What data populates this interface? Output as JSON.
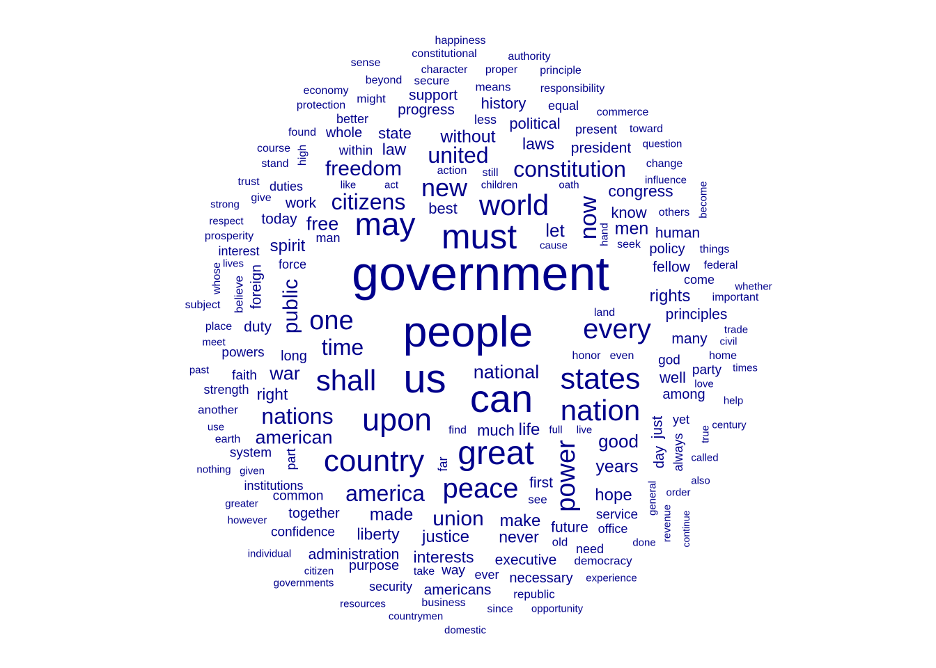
{
  "wordcloud": {
    "color": "#00008B",
    "words": [
      {
        "text": "government",
        "size": 70
      },
      {
        "text": "people",
        "size": 62
      },
      {
        "text": "us",
        "size": 58
      },
      {
        "text": "can",
        "size": 56
      },
      {
        "text": "must",
        "size": 50
      },
      {
        "text": "great",
        "size": 48
      },
      {
        "text": "may",
        "size": 46
      },
      {
        "text": "upon",
        "size": 45
      },
      {
        "text": "country",
        "size": 44
      },
      {
        "text": "states",
        "size": 43
      },
      {
        "text": "world",
        "size": 42
      },
      {
        "text": "nation",
        "size": 42
      },
      {
        "text": "shall",
        "size": 42
      },
      {
        "text": "every",
        "size": 40
      },
      {
        "text": "peace",
        "size": 40
      },
      {
        "text": "power",
        "size": 38
      },
      {
        "text": "one",
        "size": 38
      },
      {
        "text": "new",
        "size": 36
      },
      {
        "text": "now",
        "size": 34
      },
      {
        "text": "constitution",
        "size": 32
      },
      {
        "text": "america",
        "size": 32
      },
      {
        "text": "united",
        "size": 32
      },
      {
        "text": "citizens",
        "size": 32
      },
      {
        "text": "nations",
        "size": 32
      },
      {
        "text": "time",
        "size": 32
      },
      {
        "text": "freedom",
        "size": 30
      },
      {
        "text": "public",
        "size": 30
      },
      {
        "text": "union",
        "size": 30
      },
      {
        "text": "american",
        "size": 27
      },
      {
        "text": "national",
        "size": 27
      },
      {
        "text": "war",
        "size": 27
      },
      {
        "text": "free",
        "size": 27
      },
      {
        "text": "good",
        "size": 26
      },
      {
        "text": "let",
        "size": 26
      },
      {
        "text": "years",
        "size": 25
      },
      {
        "text": "without",
        "size": 25
      },
      {
        "text": "men",
        "size": 25
      },
      {
        "text": "made",
        "size": 25
      },
      {
        "text": "justice",
        "size": 24
      },
      {
        "text": "make",
        "size": 24
      },
      {
        "text": "rights",
        "size": 24
      },
      {
        "text": "life",
        "size": 24
      },
      {
        "text": "hope",
        "size": 24
      },
      {
        "text": "spirit",
        "size": 24
      },
      {
        "text": "liberty",
        "size": 23
      },
      {
        "text": "interests",
        "size": 23
      },
      {
        "text": "never",
        "size": 23
      },
      {
        "text": "right",
        "size": 23
      },
      {
        "text": "laws",
        "size": 23
      },
      {
        "text": "law",
        "size": 23
      },
      {
        "text": "congress",
        "size": 23
      },
      {
        "text": "best",
        "size": 22
      },
      {
        "text": "much",
        "size": 22
      },
      {
        "text": "political",
        "size": 22
      },
      {
        "text": "history",
        "size": 22
      },
      {
        "text": "state",
        "size": 22
      },
      {
        "text": "know",
        "size": 22
      },
      {
        "text": "well",
        "size": 22
      },
      {
        "text": "executive",
        "size": 21
      },
      {
        "text": "americans",
        "size": 21
      },
      {
        "text": "administration",
        "size": 21
      },
      {
        "text": "future",
        "size": 21
      },
      {
        "text": "first",
        "size": 21
      },
      {
        "text": "work",
        "size": 21
      },
      {
        "text": "duty",
        "size": 21
      },
      {
        "text": "fellow",
        "size": 21
      },
      {
        "text": "human",
        "size": 21
      },
      {
        "text": "principles",
        "size": 21
      },
      {
        "text": "many",
        "size": 21
      },
      {
        "text": "president",
        "size": 21
      },
      {
        "text": "today",
        "size": 21
      },
      {
        "text": "support",
        "size": 21
      },
      {
        "text": "progress",
        "size": 21
      },
      {
        "text": "whole",
        "size": 20
      },
      {
        "text": "foreign",
        "size": 21
      },
      {
        "text": "long",
        "size": 20
      },
      {
        "text": "among",
        "size": 20
      },
      {
        "text": "policy",
        "size": 20
      },
      {
        "text": "necessary",
        "size": 20
      },
      {
        "text": "purpose",
        "size": 20
      },
      {
        "text": "together",
        "size": 20
      },
      {
        "text": "confidence",
        "size": 19
      },
      {
        "text": "common",
        "size": 19
      },
      {
        "text": "powers",
        "size": 19
      },
      {
        "text": "faith",
        "size": 19
      },
      {
        "text": "system",
        "size": 19
      },
      {
        "text": "service",
        "size": 19
      },
      {
        "text": "way",
        "size": 19
      },
      {
        "text": "ever",
        "size": 18
      },
      {
        "text": "less",
        "size": 18
      },
      {
        "text": "yet",
        "size": 18
      },
      {
        "text": "just",
        "size": 21
      },
      {
        "text": "day",
        "size": 20
      },
      {
        "text": "always",
        "size": 18
      },
      {
        "text": "part",
        "size": 18
      },
      {
        "text": "far",
        "size": 18
      },
      {
        "text": "god",
        "size": 19
      },
      {
        "text": "party",
        "size": 19
      },
      {
        "text": "within",
        "size": 19
      },
      {
        "text": "present",
        "size": 18
      },
      {
        "text": "equal",
        "size": 18
      },
      {
        "text": "better",
        "size": 18
      },
      {
        "text": "duties",
        "size": 18
      },
      {
        "text": "force",
        "size": 18
      },
      {
        "text": "interest",
        "size": 18
      },
      {
        "text": "man",
        "size": 18
      },
      {
        "text": "come",
        "size": 18
      },
      {
        "text": "security",
        "size": 18
      },
      {
        "text": "strength",
        "size": 18
      },
      {
        "text": "institutions",
        "size": 18
      },
      {
        "text": "office",
        "size": 18
      },
      {
        "text": "need",
        "size": 18
      },
      {
        "text": "means",
        "size": 17
      },
      {
        "text": "secure",
        "size": 17
      },
      {
        "text": "might",
        "size": 17
      },
      {
        "text": "republic",
        "size": 17
      },
      {
        "text": "democracy",
        "size": 17
      },
      {
        "text": "old",
        "size": 17
      },
      {
        "text": "believe",
        "size": 17
      },
      {
        "text": "place",
        "size": 16
      },
      {
        "text": "another",
        "size": 17
      },
      {
        "text": "see",
        "size": 17
      },
      {
        "text": "home",
        "size": 16
      },
      {
        "text": "take",
        "size": 16
      },
      {
        "text": "honor",
        "size": 16
      },
      {
        "text": "even",
        "size": 16
      },
      {
        "text": "land",
        "size": 16
      },
      {
        "text": "still",
        "size": 16
      },
      {
        "text": "action",
        "size": 16
      },
      {
        "text": "federal",
        "size": 16
      },
      {
        "text": "important",
        "size": 16
      },
      {
        "text": "things",
        "size": 16
      },
      {
        "text": "others",
        "size": 16
      },
      {
        "text": "change",
        "size": 16
      },
      {
        "text": "seek",
        "size": 16
      },
      {
        "text": "character",
        "size": 16
      },
      {
        "text": "proper",
        "size": 16
      },
      {
        "text": "principle",
        "size": 16
      },
      {
        "text": "responsibility",
        "size": 16
      },
      {
        "text": "commerce",
        "size": 16
      },
      {
        "text": "economy",
        "size": 16
      },
      {
        "text": "beyond",
        "size": 16
      },
      {
        "text": "sense",
        "size": 16
      },
      {
        "text": "constitutional",
        "size": 16
      },
      {
        "text": "happiness",
        "size": 16
      },
      {
        "text": "authority",
        "size": 16
      },
      {
        "text": "protection",
        "size": 16
      },
      {
        "text": "found",
        "size": 16
      },
      {
        "text": "course",
        "size": 16
      },
      {
        "text": "stand",
        "size": 16
      },
      {
        "text": "high",
        "size": 16
      },
      {
        "text": "trust",
        "size": 16
      },
      {
        "text": "give",
        "size": 16
      },
      {
        "text": "strong",
        "size": 15
      },
      {
        "text": "respect",
        "size": 15
      },
      {
        "text": "prosperity",
        "size": 16
      },
      {
        "text": "lives",
        "size": 15
      },
      {
        "text": "whose",
        "size": 16
      },
      {
        "text": "subject",
        "size": 16
      },
      {
        "text": "meet",
        "size": 15
      },
      {
        "text": "past",
        "size": 15
      },
      {
        "text": "use",
        "size": 15
      },
      {
        "text": "earth",
        "size": 16
      },
      {
        "text": "nothing",
        "size": 15
      },
      {
        "text": "given",
        "size": 15
      },
      {
        "text": "greater",
        "size": 15
      },
      {
        "text": "however",
        "size": 15
      },
      {
        "text": "individual",
        "size": 15
      },
      {
        "text": "citizen",
        "size": 15
      },
      {
        "text": "governments",
        "size": 15
      },
      {
        "text": "resources",
        "size": 15
      },
      {
        "text": "countrymen",
        "size": 15
      },
      {
        "text": "domestic",
        "size": 15
      },
      {
        "text": "business",
        "size": 16
      },
      {
        "text": "since",
        "size": 16
      },
      {
        "text": "opportunity",
        "size": 15
      },
      {
        "text": "experience",
        "size": 15
      },
      {
        "text": "done",
        "size": 15
      },
      {
        "text": "continue",
        "size": 14
      },
      {
        "text": "revenue",
        "size": 15
      },
      {
        "text": "general",
        "size": 15
      },
      {
        "text": "order",
        "size": 15
      },
      {
        "text": "also",
        "size": 15
      },
      {
        "text": "called",
        "size": 15
      },
      {
        "text": "true",
        "size": 15
      },
      {
        "text": "century",
        "size": 15
      },
      {
        "text": "help",
        "size": 15
      },
      {
        "text": "times",
        "size": 15
      },
      {
        "text": "love",
        "size": 15
      },
      {
        "text": "civil",
        "size": 15
      },
      {
        "text": "trade",
        "size": 15
      },
      {
        "text": "whether",
        "size": 15
      },
      {
        "text": "become",
        "size": 15
      },
      {
        "text": "influence",
        "size": 15
      },
      {
        "text": "question",
        "size": 15
      },
      {
        "text": "toward",
        "size": 16
      },
      {
        "text": "oath",
        "size": 15
      },
      {
        "text": "children",
        "size": 15
      },
      {
        "text": "act",
        "size": 15
      },
      {
        "text": "like",
        "size": 15
      },
      {
        "text": "cause",
        "size": 15
      },
      {
        "text": "hand",
        "size": 15
      },
      {
        "text": "full",
        "size": 15
      },
      {
        "text": "live",
        "size": 15
      },
      {
        "text": "find",
        "size": 16
      }
    ]
  }
}
